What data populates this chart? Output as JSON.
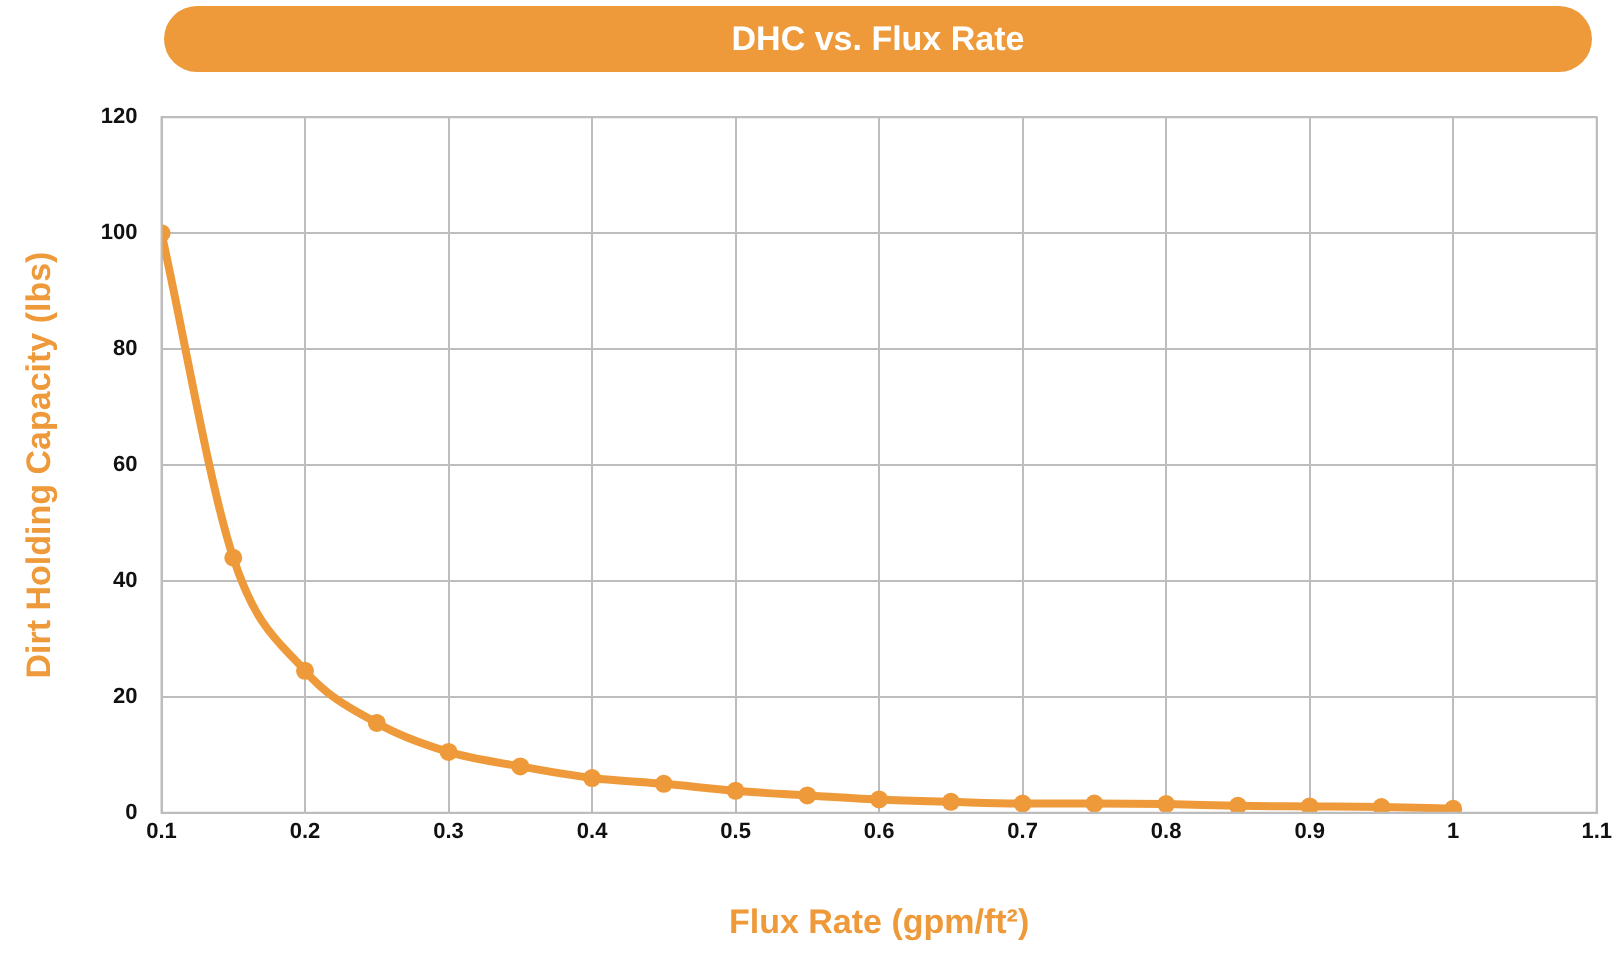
{
  "chart_data": {
    "type": "line",
    "title": "DHC vs. Flux Rate",
    "xlabel": "Flux Rate (gpm/ft²)",
    "ylabel": "Dirt Holding Capacity (lbs)",
    "x": [
      0.1,
      0.15,
      0.2,
      0.25,
      0.3,
      0.35,
      0.4,
      0.45,
      0.5,
      0.55,
      0.6,
      0.65,
      0.7,
      0.75,
      0.8,
      0.85,
      0.9,
      0.95,
      1.0
    ],
    "series": [
      {
        "color": "#ee9a3a",
        "values": [
          100,
          44,
          24.5,
          15.5,
          10.5,
          8,
          6,
          5,
          3.8,
          3,
          2.3,
          1.9,
          1.6,
          1.6,
          1.5,
          1.2,
          1.1,
          1,
          0.7
        ]
      }
    ],
    "xlim": [
      0.1,
      1.1
    ],
    "xticks": [
      0.1,
      0.2,
      0.3,
      0.4,
      0.5,
      0.6,
      0.7,
      0.8,
      0.9,
      1,
      1.1
    ],
    "ylim": [
      0,
      120
    ],
    "yticks": [
      0,
      20,
      40,
      60,
      80,
      100,
      120
    ],
    "grid": true,
    "legend": false,
    "marker": "circle",
    "line_style": "solid"
  }
}
